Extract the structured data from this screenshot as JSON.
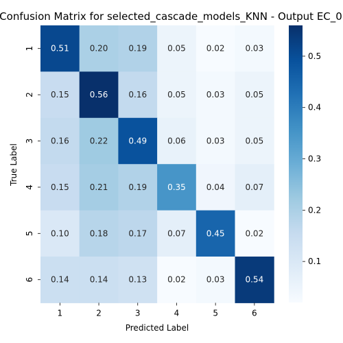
{
  "chart_data": {
    "type": "heatmap",
    "title": "Confusion Matrix for selected_cascade_models_KNN - Output EC_0",
    "xlabel": "Predicted Label",
    "ylabel": "True Label",
    "x_categories": [
      "1",
      "2",
      "3",
      "4",
      "5",
      "6"
    ],
    "y_categories": [
      "1",
      "2",
      "3",
      "4",
      "5",
      "6"
    ],
    "values": [
      [
        0.51,
        0.2,
        0.19,
        0.05,
        0.02,
        0.03
      ],
      [
        0.15,
        0.56,
        0.16,
        0.05,
        0.03,
        0.05
      ],
      [
        0.16,
        0.22,
        0.49,
        0.06,
        0.03,
        0.05
      ],
      [
        0.15,
        0.21,
        0.19,
        0.35,
        0.04,
        0.07
      ],
      [
        0.1,
        0.18,
        0.17,
        0.07,
        0.45,
        0.02
      ],
      [
        0.14,
        0.14,
        0.13,
        0.02,
        0.03,
        0.54
      ]
    ],
    "colormap": "Blues",
    "colorbar_range": [
      0.02,
      0.56
    ],
    "colorbar_ticks": [
      "0.1",
      "0.2",
      "0.3",
      "0.4",
      "0.5"
    ],
    "colorbar_tick_values": [
      0.1,
      0.2,
      0.3,
      0.4,
      0.5
    ]
  }
}
